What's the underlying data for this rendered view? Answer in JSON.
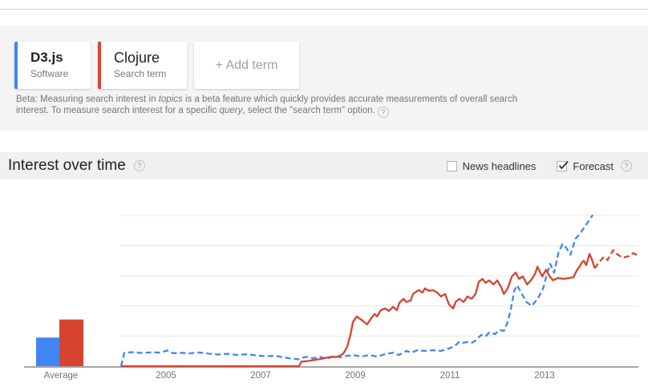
{
  "terms_panel": {
    "terms": [
      {
        "title": "D3.js",
        "type": "Software",
        "color": "#4285f4"
      },
      {
        "title": "Clojure",
        "type": "Search term",
        "color": "#db4437"
      }
    ],
    "add_term_label": "+ Add term",
    "beta_note": {
      "segments": [
        "Beta: Measuring search interest in ",
        "topics",
        " is a beta feature which quickly provides accurate measurements of overall search interest. To measure search interest for a specific ",
        "query",
        ", select the \"search term\" option."
      ],
      "help_icon": "?"
    }
  },
  "section_header": {
    "title": "Interest over time",
    "help_icon": "?",
    "news_headlines_label": "News headlines",
    "news_headlines_checked": false,
    "forecast_label": "Forecast",
    "forecast_checked": true
  },
  "chart_data": {
    "type": "line",
    "title": "Interest over time",
    "legend_position": "none",
    "grid": "horizontal",
    "x_axis": {
      "ticks": [
        "2005",
        "2007",
        "2009",
        "2011",
        "2013"
      ],
      "tick_years": [
        2005,
        2007,
        2009,
        2011,
        2013
      ],
      "range_years": [
        2004.0,
        15.0
      ]
    },
    "y_axis": {
      "min": 0,
      "max": 100,
      "gridline_values": [
        20,
        40,
        60,
        80,
        100
      ],
      "labels_visible": false
    },
    "average_bars": {
      "label": "Average",
      "series": [
        {
          "name": "D3.js",
          "value": 19,
          "color": "#4285f4"
        },
        {
          "name": "Clojure",
          "value": 31,
          "color": "#d6442f"
        }
      ]
    },
    "series": [
      {
        "name": "D3.js",
        "color": "#4285f4",
        "style": "dashed",
        "points": [
          [
            2004.05,
            0
          ],
          [
            2004.12,
            9
          ],
          [
            2004.3,
            9.3
          ],
          [
            2004.5,
            8.7
          ],
          [
            2004.7,
            9.2
          ],
          [
            2004.9,
            9.0
          ],
          [
            2005.02,
            10.4
          ],
          [
            2005.15,
            8.6
          ],
          [
            2005.3,
            8.9
          ],
          [
            2005.5,
            8.5
          ],
          [
            2005.7,
            9.1
          ],
          [
            2005.9,
            8.3
          ],
          [
            2006.1,
            7.7
          ],
          [
            2006.3,
            8.2
          ],
          [
            2006.5,
            7.4
          ],
          [
            2006.7,
            7.9
          ],
          [
            2006.9,
            7.2
          ],
          [
            2007.1,
            6.6
          ],
          [
            2007.3,
            6.9
          ],
          [
            2007.5,
            5.8
          ],
          [
            2007.65,
            5.0
          ],
          [
            2007.8,
            4.6
          ],
          [
            2007.95,
            6.2
          ],
          [
            2008.1,
            5.2
          ],
          [
            2008.25,
            6.2
          ],
          [
            2008.4,
            4.9
          ],
          [
            2008.55,
            6.6
          ],
          [
            2008.7,
            5.8
          ],
          [
            2008.83,
            6.9
          ],
          [
            2008.95,
            7.4
          ],
          [
            2009.12,
            6.4
          ],
          [
            2009.29,
            7.4
          ],
          [
            2009.46,
            6.4
          ],
          [
            2009.63,
            8.0
          ],
          [
            2009.8,
            9.0
          ],
          [
            2009.92,
            7.4
          ],
          [
            2010.08,
            10.1
          ],
          [
            2010.19,
            9.0
          ],
          [
            2010.31,
            10.6
          ],
          [
            2010.47,
            10.1
          ],
          [
            2010.64,
            10.6
          ],
          [
            2010.81,
            10.1
          ],
          [
            2010.98,
            11.7
          ],
          [
            2011.1,
            13.3
          ],
          [
            2011.19,
            16.0
          ],
          [
            2011.27,
            15.4
          ],
          [
            2011.37,
            16.0
          ],
          [
            2011.46,
            15.4
          ],
          [
            2011.54,
            17.0
          ],
          [
            2011.66,
            20.7
          ],
          [
            2011.75,
            19.7
          ],
          [
            2011.83,
            22.3
          ],
          [
            2011.95,
            21.3
          ],
          [
            2012.05,
            24.0
          ],
          [
            2012.14,
            23.4
          ],
          [
            2012.22,
            29.3
          ],
          [
            2012.29,
            38.3
          ],
          [
            2012.36,
            50.0
          ],
          [
            2012.42,
            53.8
          ],
          [
            2012.52,
            48.0
          ],
          [
            2012.62,
            42.5
          ],
          [
            2012.73,
            40.0
          ],
          [
            2012.85,
            44.5
          ],
          [
            2012.97,
            51.5
          ],
          [
            2013.05,
            61.0
          ],
          [
            2013.12,
            68.0
          ],
          [
            2013.2,
            62.0
          ],
          [
            2013.3,
            76.0
          ],
          [
            2013.38,
            81.0
          ],
          [
            2013.45,
            79.0
          ],
          [
            2013.55,
            74.0
          ],
          [
            2013.65,
            84.5
          ],
          [
            2013.75,
            88.0
          ],
          [
            2013.88,
            94.0
          ],
          [
            2014.02,
            100.5
          ]
        ]
      },
      {
        "name": "Clojure",
        "color": "#d6442f",
        "style": "solid",
        "points": [
          [
            2004.05,
            0
          ],
          [
            2005.0,
            0
          ],
          [
            2006.0,
            0
          ],
          [
            2007.0,
            0
          ],
          [
            2007.81,
            0
          ],
          [
            2007.86,
            3.0
          ],
          [
            2008.0,
            3.4
          ],
          [
            2008.15,
            4.2
          ],
          [
            2008.3,
            5.0
          ],
          [
            2008.42,
            5.8
          ],
          [
            2008.5,
            6.3
          ],
          [
            2008.58,
            6.0
          ],
          [
            2008.67,
            6.8
          ],
          [
            2008.75,
            8.5
          ],
          [
            2008.83,
            13.0
          ],
          [
            2008.9,
            21.0
          ],
          [
            2008.95,
            29.3
          ],
          [
            2009.03,
            33.0
          ],
          [
            2009.15,
            30.3
          ],
          [
            2009.25,
            27.7
          ],
          [
            2009.34,
            32.0
          ],
          [
            2009.41,
            34.6
          ],
          [
            2009.46,
            33.0
          ],
          [
            2009.54,
            37.2
          ],
          [
            2009.63,
            38.3
          ],
          [
            2009.71,
            36.7
          ],
          [
            2009.8,
            39.4
          ],
          [
            2009.88,
            37.2
          ],
          [
            2009.93,
            42.0
          ],
          [
            2010.02,
            44.7
          ],
          [
            2010.08,
            42.6
          ],
          [
            2010.17,
            43.6
          ],
          [
            2010.22,
            47.9
          ],
          [
            2010.34,
            50.5
          ],
          [
            2010.42,
            48.9
          ],
          [
            2010.47,
            51.6
          ],
          [
            2010.56,
            50.0
          ],
          [
            2010.64,
            50.5
          ],
          [
            2010.73,
            48.9
          ],
          [
            2010.81,
            46.3
          ],
          [
            2010.9,
            47.9
          ],
          [
            2010.98,
            41.0
          ],
          [
            2011.07,
            38.3
          ],
          [
            2011.12,
            42.6
          ],
          [
            2011.2,
            44.7
          ],
          [
            2011.29,
            42.6
          ],
          [
            2011.37,
            46.3
          ],
          [
            2011.46,
            44.7
          ],
          [
            2011.54,
            47.9
          ],
          [
            2011.61,
            55.9
          ],
          [
            2011.69,
            58.0
          ],
          [
            2011.75,
            55.3
          ],
          [
            2011.83,
            56.9
          ],
          [
            2011.92,
            54.3
          ],
          [
            2012.0,
            56.9
          ],
          [
            2012.08,
            52.7
          ],
          [
            2012.14,
            47.9
          ],
          [
            2012.22,
            51.6
          ],
          [
            2012.31,
            59.6
          ],
          [
            2012.39,
            62.2
          ],
          [
            2012.46,
            58.0
          ],
          [
            2012.54,
            59.6
          ],
          [
            2012.63,
            54.3
          ],
          [
            2012.71,
            56.9
          ],
          [
            2012.8,
            61.2
          ],
          [
            2012.85,
            66.0
          ],
          [
            2012.95,
            59.6
          ],
          [
            2013.03,
            64.0
          ],
          [
            2013.1,
            60.0
          ],
          [
            2013.18,
            57.0
          ],
          [
            2013.28,
            58.5
          ],
          [
            2013.4,
            58.0
          ],
          [
            2013.52,
            58.5
          ],
          [
            2013.61,
            59.0
          ],
          [
            2013.68,
            63.5
          ],
          [
            2013.75,
            66.5
          ],
          [
            2013.78,
            68.5
          ],
          [
            2013.83,
            70.0
          ],
          [
            2013.88,
            67.0
          ],
          [
            2013.95,
            74.5
          ],
          [
            2014.0,
            71.0
          ],
          [
            2014.06,
            65.0
          ]
        ]
      },
      {
        "name": "Clojure forecast",
        "color": "#d6442f",
        "style": "dashed",
        "points": [
          [
            2014.06,
            65.0
          ],
          [
            2014.15,
            69.0
          ],
          [
            2014.25,
            72.5
          ],
          [
            2014.33,
            70.5
          ],
          [
            2014.45,
            77.0
          ],
          [
            2014.55,
            74.0
          ],
          [
            2014.65,
            72.0
          ],
          [
            2014.78,
            73.0
          ],
          [
            2014.88,
            75.0
          ],
          [
            2014.97,
            73.5
          ]
        ]
      }
    ]
  }
}
